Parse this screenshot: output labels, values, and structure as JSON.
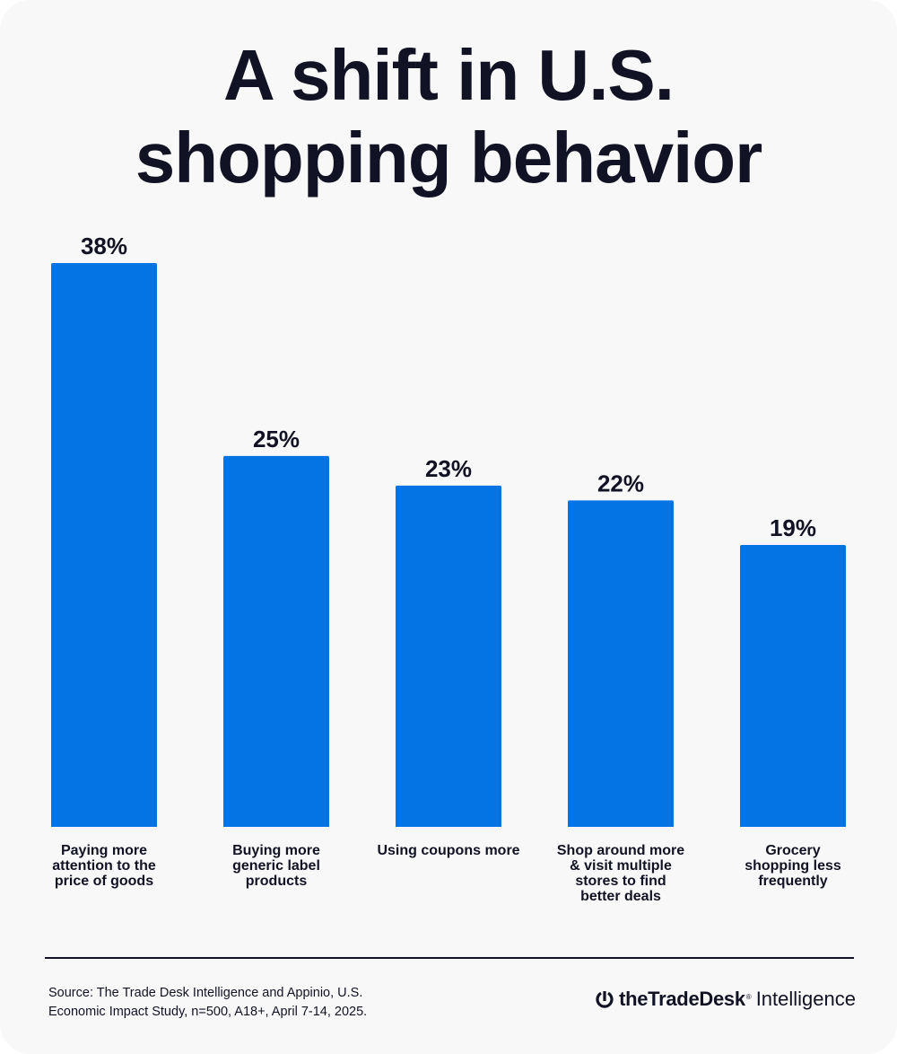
{
  "title_lines": [
    "A shift in U.S.",
    "shopping behavior"
  ],
  "chart_data": {
    "type": "bar",
    "title": "A shift in U.S. shopping behavior",
    "categories": [
      "Paying more attention to the price of goods",
      "Buying more generic label products",
      "Using coupons more",
      "Shop around more & visit multiple stores to find better deals",
      "Grocery shopping less frequently"
    ],
    "category_lines": [
      [
        "Paying more",
        "attention to the",
        "price of goods"
      ],
      [
        "Buying more",
        "generic label",
        "products"
      ],
      [
        "Using coupons more"
      ],
      [
        "Shop around more",
        "& visit multiple",
        "stores to find",
        "better deals"
      ],
      [
        "Grocery",
        "shopping less",
        "frequently"
      ]
    ],
    "values": [
      38,
      25,
      23,
      22,
      19
    ],
    "value_labels": [
      "38%",
      "25%",
      "23%",
      "22%",
      "19%"
    ],
    "ylim": [
      0,
      38
    ],
    "grid": false,
    "bar_color": "#0474e4"
  },
  "footer": {
    "source_lines": [
      "Source: The Trade Desk Intelligence and Appinio, U.S.",
      "Economic Impact Study, n=500, A18+, April 7-14, 2025."
    ],
    "brand": {
      "name": "theTradeDesk",
      "trademark": "®",
      "suffix": "Intelligence"
    }
  },
  "colors": {
    "text": "#111325",
    "background": "#f8f8f8",
    "bar": "#0474e4"
  }
}
